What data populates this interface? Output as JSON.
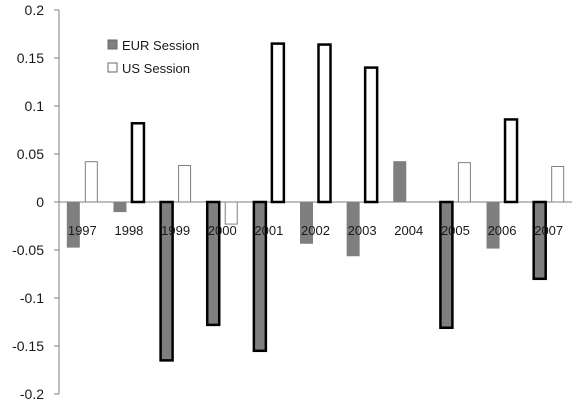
{
  "chart_data": {
    "type": "bar",
    "title": "",
    "xlabel": "",
    "ylabel": "",
    "ylim": [
      -0.2,
      0.2
    ],
    "yticks": [
      "0.2",
      "0.15",
      "0.1",
      "0.05",
      "0",
      "-0.05",
      "-0.1",
      "-0.15",
      "-0.2"
    ],
    "categories": [
      "1997",
      "1998",
      "1999",
      "2000",
      "2001",
      "2002",
      "2003",
      "2004",
      "2005",
      "2006",
      "2007"
    ],
    "series": [
      {
        "name": "EUR Session",
        "color": "#7f7f7f",
        "values": [
          -0.047,
          -0.01,
          -0.165,
          -0.128,
          -0.155,
          -0.043,
          -0.056,
          0.042,
          -0.131,
          -0.048,
          -0.08
        ],
        "bold_outline": [
          false,
          false,
          true,
          true,
          true,
          false,
          false,
          false,
          true,
          false,
          true
        ]
      },
      {
        "name": "US Session",
        "color": "#ffffff",
        "values": [
          0.042,
          0.082,
          0.038,
          -0.023,
          0.165,
          0.164,
          0.14,
          0.0,
          0.041,
          0.086,
          0.037
        ],
        "bold_outline": [
          false,
          true,
          false,
          false,
          true,
          true,
          true,
          false,
          false,
          true,
          false
        ]
      }
    ],
    "legend_position": "top-left",
    "grid": false
  }
}
